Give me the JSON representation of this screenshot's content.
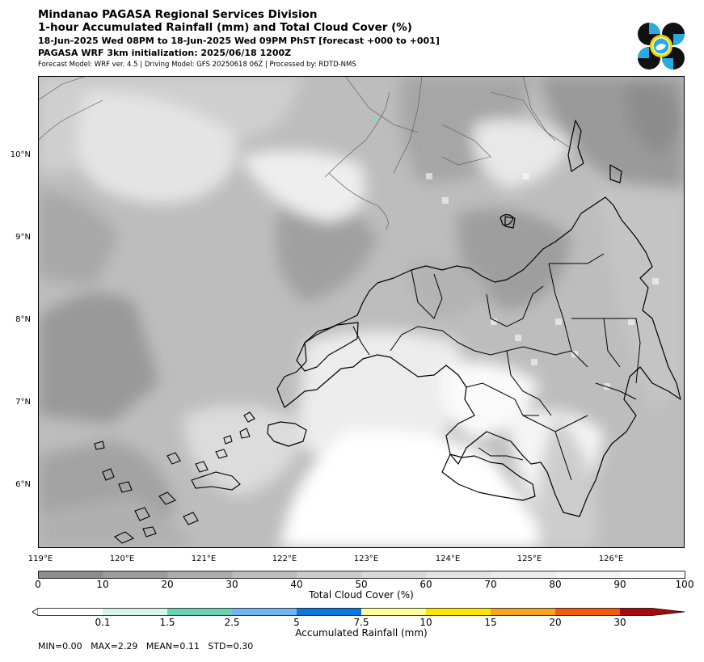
{
  "header": {
    "agency": "Mindanao PAGASA Regional Services Division",
    "product": "1-hour Accumulated Rainfall (mm) and Total Cloud Cover (%)",
    "valid_time": "18-Jun-2025 Wed 08PM to 18-Jun-2025 Wed 09PM PhST [forecast +000 to +001]",
    "init": "PAGASA WRF 3km initialization: 2025/06/18 1200Z",
    "model_info": "Forecast Model: WRF ver. 4.5 | Driving Model: GFS 20250618 06Z | Processed by: RDTD-NMS"
  },
  "logo": {
    "name": "pagasa-logo",
    "colors": [
      "#111111",
      "#29abe2",
      "#f2d600",
      "#ffffff"
    ]
  },
  "map": {
    "lat_labels": [
      "10°N",
      "9°N",
      "8°N",
      "7°N",
      "6°N"
    ],
    "lon_labels": [
      "119°E",
      "120°E",
      "121°E",
      "122°E",
      "123°E",
      "124°E",
      "125°E",
      "126°E"
    ],
    "extent": {
      "lon": [
        119,
        126.9
      ],
      "lat": [
        5.25,
        10.95
      ]
    },
    "region": "Mindanao"
  },
  "cloud_colorbar": {
    "label": "Total Cloud Cover (%)",
    "ticks": [
      "0",
      "10",
      "20",
      "30",
      "40",
      "50",
      "60",
      "70",
      "80",
      "90",
      "100"
    ],
    "colors": [
      "#8c8c8c",
      "#9c9c9c",
      "#acacac",
      "#bdbdbd",
      "#cbcbcb",
      "#d8d8d8",
      "#e3e3e3",
      "#ececec",
      "#f4f4f4",
      "#fbfbfb"
    ]
  },
  "rain_colorbar": {
    "label": "Accumulated Rainfall (mm)",
    "ticks": [
      "0.1",
      "1.5",
      "2.5",
      "5",
      "7.5",
      "10",
      "15",
      "20",
      "30"
    ],
    "colors": [
      "#ffffff",
      "#d6f5ee",
      "#6bd1b3",
      "#6fb6f5",
      "#0b78e0",
      "#ffff9a",
      "#ffe600",
      "#f8a41e",
      "#f45a0a",
      "#a50a0a"
    ]
  },
  "stats": {
    "text": "MIN=0.00   MAX=2.29   MEAN=0.11   STD=0.30"
  }
}
